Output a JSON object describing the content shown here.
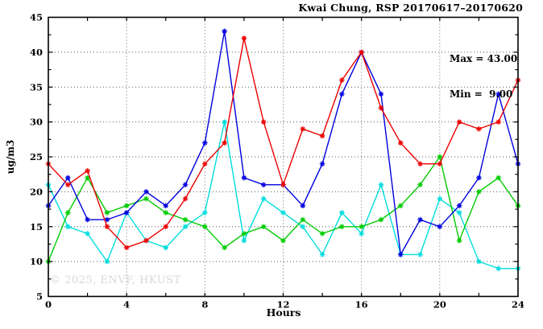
{
  "title": "Kwai Chung, RSP 20170617–20170620",
  "stats": {
    "max_label": "Max = 43.00",
    "min_label": "Min =  9.00"
  },
  "watermark": "© 2025, ENVF, HKUST",
  "axes": {
    "xlabel": "Hours",
    "ylabel": "ug/m3"
  },
  "chart_data": {
    "type": "line",
    "title": "Kwai Chung, RSP 20170617–20170620",
    "xlabel": "Hours",
    "ylabel": "ug/m3",
    "xlim": [
      0,
      24
    ],
    "ylim": [
      5,
      45
    ],
    "grid": true,
    "legend_position": "none",
    "annotations": [
      "Max = 43.00",
      "Min =  9.00"
    ],
    "x": [
      0,
      1,
      2,
      3,
      4,
      5,
      6,
      7,
      8,
      9,
      10,
      11,
      12,
      13,
      14,
      15,
      16,
      17,
      18,
      19,
      20,
      21,
      22,
      23,
      24
    ],
    "series": [
      {
        "name": "cyan",
        "color": "#00dddd",
        "values": [
          21,
          15,
          14,
          10,
          17,
          13,
          12,
          15,
          17,
          30,
          13,
          19,
          17,
          15,
          11,
          17,
          14,
          21,
          11,
          11,
          19,
          17,
          10,
          9,
          9
        ]
      },
      {
        "name": "green",
        "color": "#00cc00",
        "values": [
          10,
          17,
          22,
          17,
          18,
          19,
          17,
          16,
          15,
          12,
          14,
          15,
          13,
          16,
          14,
          15,
          15,
          16,
          18,
          21,
          25,
          13,
          20,
          22,
          18
        ]
      },
      {
        "name": "blue",
        "color": "#0000e0",
        "values": [
          18,
          22,
          16,
          16,
          17,
          20,
          18,
          21,
          27,
          43,
          22,
          21,
          21,
          18,
          24,
          34,
          40,
          34,
          11,
          16,
          15,
          18,
          22,
          34,
          24
        ]
      },
      {
        "name": "red",
        "color": "#ee0000",
        "values": [
          24,
          21,
          23,
          15,
          12,
          13,
          15,
          19,
          24,
          27,
          42,
          30,
          21,
          29,
          28,
          36,
          40,
          32,
          27,
          24,
          24,
          30,
          29,
          30,
          36
        ]
      }
    ],
    "x_major_ticks": [
      0,
      4,
      8,
      12,
      16,
      20,
      24
    ],
    "x_minor_step": 2,
    "y_major_ticks": [
      5,
      10,
      15,
      20,
      25,
      30,
      35,
      40,
      45
    ],
    "y_minor_step": 2.5,
    "x_gridlines": [
      4,
      8,
      12,
      16,
      20
    ],
    "y_gridlines": [
      10,
      15,
      20,
      25,
      30,
      35,
      40
    ]
  }
}
